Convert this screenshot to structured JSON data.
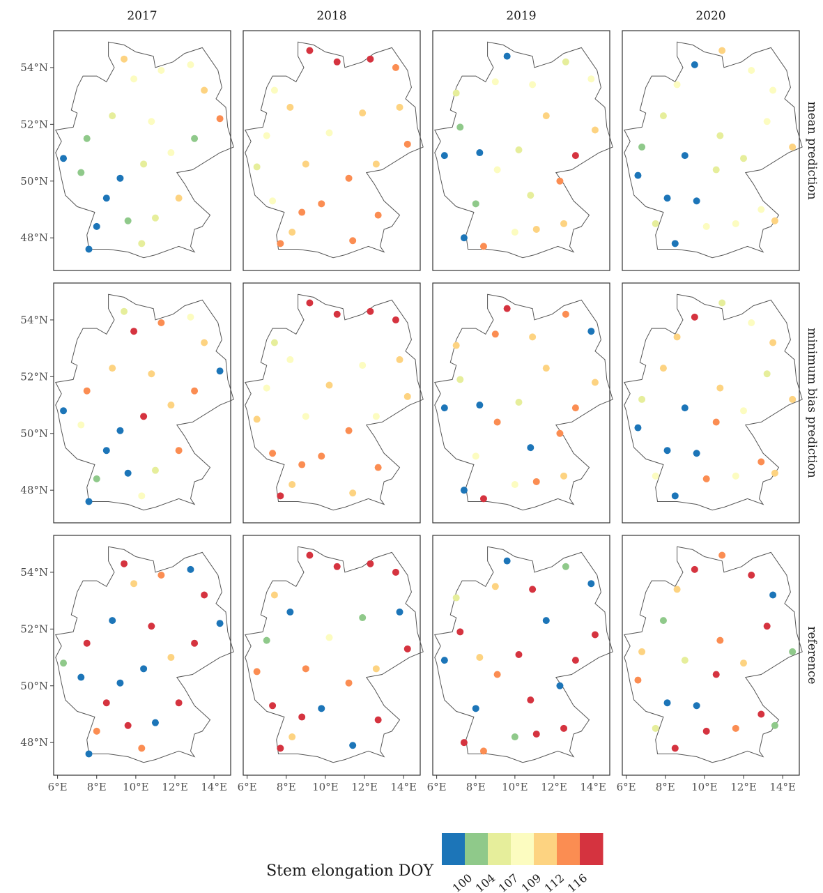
{
  "chart_data": {
    "type": "scatter",
    "xlim": [
      5.8,
      14.85
    ],
    "ylim": [
      46.85,
      55.3
    ],
    "xticks": [
      {
        "value": 6,
        "label": "6°E"
      },
      {
        "value": 8,
        "label": "8°E"
      },
      {
        "value": 10,
        "label": "10°E"
      },
      {
        "value": 12,
        "label": "12°E"
      },
      {
        "value": 14,
        "label": "14°E"
      }
    ],
    "yticks": [
      {
        "value": 48,
        "label": "48°N"
      },
      {
        "value": 50,
        "label": "50°N"
      },
      {
        "value": 52,
        "label": "52°N"
      },
      {
        "value": 54,
        "label": "54°N"
      }
    ],
    "legend": {
      "title": "Stem elongation DOY",
      "breaks": [
        100,
        104,
        107,
        109,
        112,
        116
      ],
      "colors": [
        "#1c75b8",
        "#8fc98a",
        "#e6ee9b",
        "#fcfcc0",
        "#fdd381",
        "#fb8d52",
        "#d5333f"
      ]
    },
    "columns": [
      {
        "label": "2017",
        "x": [
          7.6,
          8.0,
          8.5,
          7.2,
          6.3,
          7.5,
          8.8,
          9.9,
          9.4,
          11.3,
          12.8,
          13.5,
          14.3,
          13.0,
          11.8,
          10.4,
          12.2,
          11.0,
          9.6,
          10.3,
          9.2,
          10.8
        ],
        "y": [
          47.6,
          48.4,
          49.4,
          50.3,
          50.8,
          51.5,
          52.3,
          53.6,
          54.3,
          53.9,
          54.1,
          53.2,
          52.2,
          51.5,
          51.0,
          50.6,
          49.4,
          48.7,
          48.6,
          47.8,
          50.1,
          52.1
        ]
      },
      {
        "label": "2018",
        "x": [
          7.7,
          8.3,
          7.3,
          6.5,
          7.0,
          8.2,
          7.4,
          9.2,
          10.6,
          12.3,
          13.6,
          13.8,
          14.2,
          12.6,
          11.2,
          12.7,
          11.4,
          9.8,
          9.0,
          10.2,
          11.9,
          8.8
        ],
        "y": [
          47.8,
          48.2,
          49.3,
          50.5,
          51.6,
          52.6,
          53.2,
          54.6,
          54.2,
          54.3,
          54.0,
          52.6,
          51.3,
          50.6,
          50.1,
          48.8,
          47.9,
          49.2,
          50.6,
          51.7,
          52.4,
          48.9
        ]
      },
      {
        "label": "2019",
        "x": [
          7.4,
          8.4,
          8.0,
          6.4,
          7.2,
          7.0,
          9.0,
          9.6,
          10.9,
          12.6,
          13.9,
          14.1,
          13.1,
          12.3,
          10.8,
          12.5,
          10.0,
          9.1,
          10.2,
          11.6,
          8.2,
          11.1
        ],
        "y": [
          48.0,
          47.7,
          49.2,
          50.9,
          51.9,
          53.1,
          53.5,
          54.4,
          53.4,
          54.2,
          53.6,
          51.8,
          50.9,
          50.0,
          49.5,
          48.5,
          48.2,
          50.4,
          51.1,
          52.3,
          51.0,
          48.3
        ]
      },
      {
        "label": "2020",
        "x": [
          8.5,
          7.5,
          8.1,
          6.6,
          6.8,
          7.9,
          8.6,
          9.5,
          10.9,
          12.4,
          13.5,
          14.5,
          13.2,
          12.0,
          10.6,
          12.9,
          11.6,
          9.6,
          10.8,
          9.0,
          10.1,
          13.6
        ],
        "y": [
          47.8,
          48.5,
          49.4,
          50.2,
          51.2,
          52.3,
          53.4,
          54.1,
          54.6,
          53.9,
          53.2,
          51.2,
          52.1,
          50.8,
          50.4,
          49.0,
          48.5,
          49.3,
          51.6,
          50.9,
          48.4,
          48.6
        ]
      }
    ],
    "rows": [
      {
        "label": "mean prediction",
        "values": [
          [
            98,
            98,
            98,
            102,
            98,
            102,
            105,
            108,
            110,
            108,
            108,
            110,
            112,
            102,
            108,
            105,
            110,
            105,
            102,
            105,
            98,
            108
          ],
          [
            114,
            110,
            108,
            105,
            108,
            110,
            108,
            118,
            118,
            118,
            114,
            110,
            112,
            110,
            112,
            112,
            114,
            112,
            110,
            108,
            110,
            114
          ],
          [
            98,
            112,
            102,
            98,
            102,
            105,
            108,
            98,
            108,
            105,
            108,
            110,
            118,
            112,
            105,
            110,
            108,
            108,
            105,
            110,
            98,
            110
          ],
          [
            98,
            105,
            98,
            98,
            102,
            105,
            108,
            98,
            110,
            108,
            108,
            110,
            108,
            105,
            105,
            108,
            108,
            98,
            105,
            98,
            108,
            110
          ]
        ]
      },
      {
        "label": "minimum bias prediction",
        "values": [
          [
            98,
            102,
            98,
            108,
            98,
            114,
            110,
            118,
            105,
            114,
            108,
            110,
            98,
            114,
            110,
            118,
            114,
            105,
            98,
            108,
            98,
            110
          ],
          [
            118,
            110,
            114,
            110,
            108,
            108,
            105,
            118,
            118,
            118,
            118,
            110,
            110,
            108,
            114,
            114,
            110,
            112,
            108,
            110,
            108,
            112
          ],
          [
            98,
            116,
            108,
            98,
            105,
            110,
            114,
            118,
            110,
            114,
            98,
            110,
            114,
            114,
            98,
            110,
            108,
            114,
            105,
            110,
            98,
            114
          ],
          [
            98,
            108,
            98,
            98,
            105,
            110,
            110,
            118,
            105,
            108,
            110,
            110,
            105,
            108,
            114,
            114,
            108,
            98,
            110,
            98,
            114,
            110
          ]
        ]
      },
      {
        "label": "reference",
        "values": [
          [
            98,
            114,
            118,
            98,
            102,
            118,
            98,
            110,
            118,
            114,
            98,
            118,
            98,
            118,
            110,
            98,
            118,
            98,
            118,
            114,
            98,
            118
          ],
          [
            118,
            110,
            118,
            114,
            102,
            98,
            110,
            118,
            118,
            118,
            118,
            98,
            118,
            110,
            114,
            118,
            98,
            98,
            114,
            108,
            102,
            118
          ],
          [
            118,
            114,
            98,
            98,
            118,
            105,
            110,
            98,
            118,
            102,
            98,
            118,
            118,
            98,
            118,
            118,
            102,
            114,
            118,
            98,
            110,
            118
          ],
          [
            118,
            105,
            98,
            114,
            110,
            102,
            110,
            118,
            114,
            118,
            98,
            102,
            118,
            110,
            118,
            118,
            114,
            98,
            114,
            105,
            118,
            102
          ]
        ]
      }
    ]
  }
}
